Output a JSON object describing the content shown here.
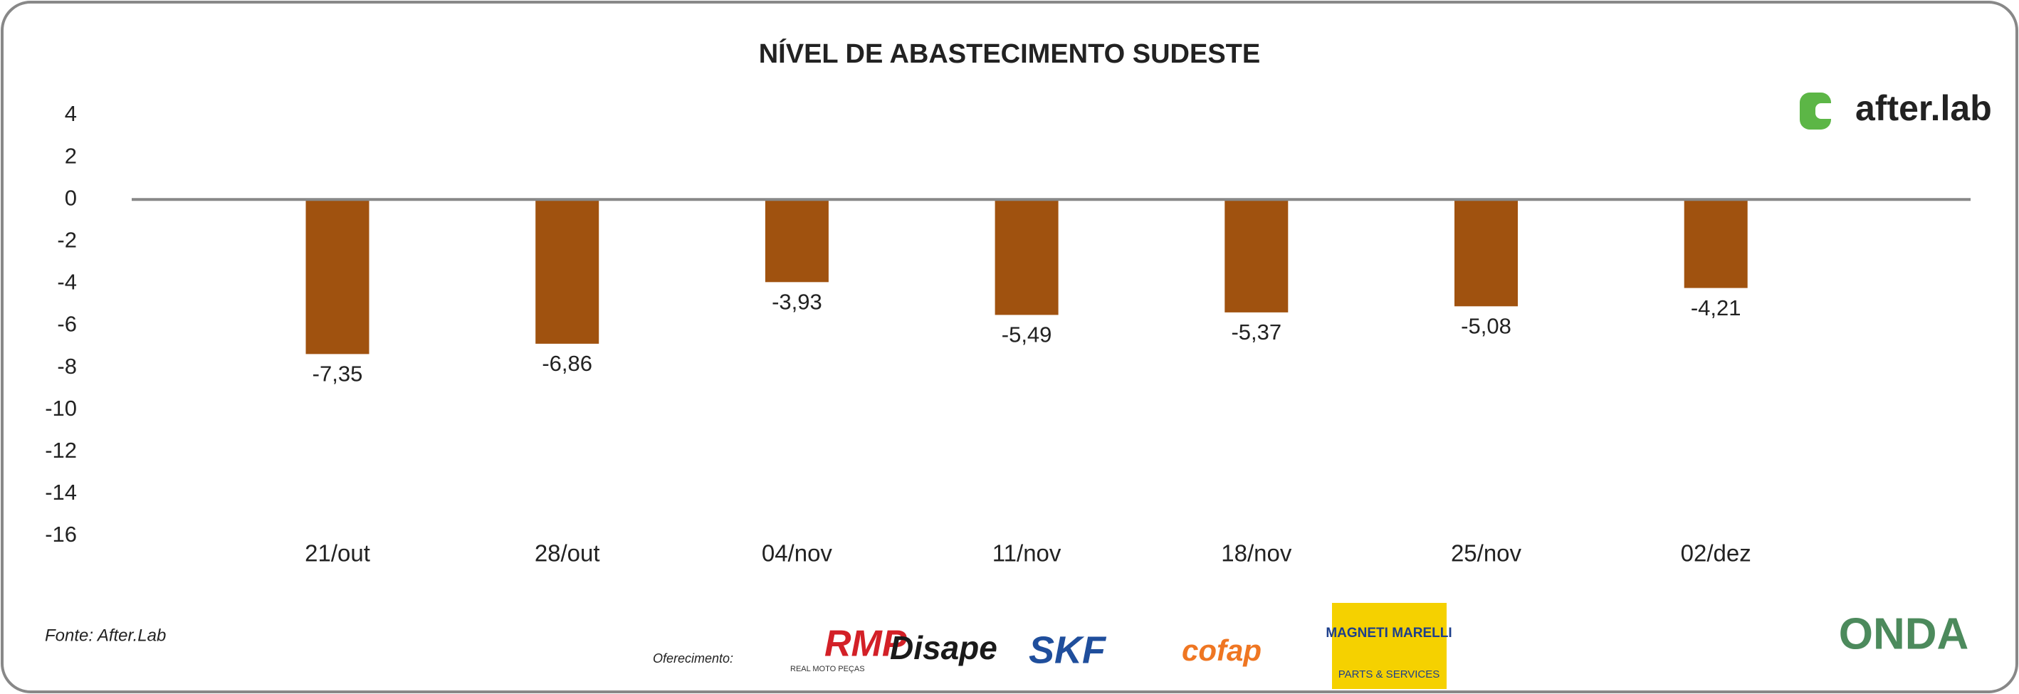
{
  "chart_data": {
    "type": "bar",
    "title": "NÍVEL DE ABASTECIMENTO SUDESTE",
    "categories": [
      "21/out",
      "28/out",
      "04/nov",
      "11/nov",
      "18/nov",
      "25/nov",
      "02/dez"
    ],
    "values": [
      -7.35,
      -6.86,
      -3.93,
      -5.49,
      -5.37,
      -5.08,
      -4.21
    ],
    "value_labels": [
      "-7,35",
      "-6,86",
      "-3,93",
      "-5,49",
      "-5,37",
      "-5,08",
      "-4,21"
    ],
    "color": "#a0520f",
    "ylim": [
      -16,
      4
    ],
    "yticks": [
      4,
      2,
      0,
      -2,
      -4,
      -6,
      -8,
      -10,
      -12,
      -14,
      -16
    ],
    "grid": false
  },
  "footer": {
    "source": "Fonte: After.Lab",
    "sponsor_label": "Oferecimento:"
  },
  "logos": {
    "afterlab": "after.lab",
    "rmp": "RMP",
    "rmp_sub": "REAL MOTO PEÇAS",
    "disape": "Disape",
    "skf": "SKF",
    "cofap": "cofap",
    "magneti": "MAGNETI MARELLI",
    "magneti_sub": "PARTS & SERVICES",
    "onda": "ONDA"
  }
}
